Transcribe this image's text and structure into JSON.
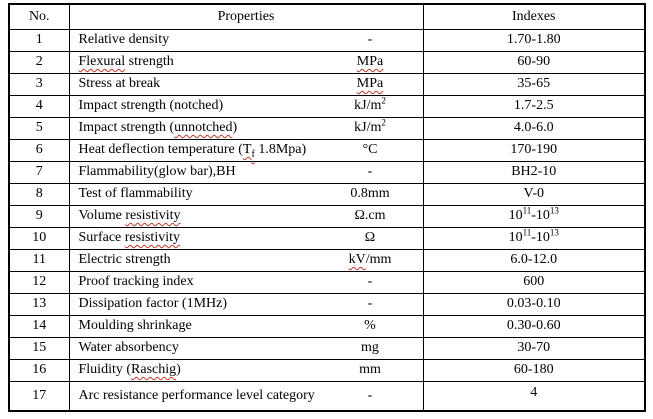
{
  "colors": {
    "background": "#ffffff",
    "text": "#000000",
    "border": "#000000",
    "squiggle": "#c0392b"
  },
  "table": {
    "headers": {
      "no": "No.",
      "properties": "Properties",
      "indexes": "Indexes"
    },
    "rows": [
      {
        "no": "1",
        "property": [
          {
            "text": "Relative density"
          }
        ],
        "unit": [
          {
            "text": "-"
          }
        ],
        "index": [
          {
            "text": "1.70-1.80"
          }
        ]
      },
      {
        "no": "2",
        "property": [
          {
            "text": "Flexural",
            "squiggle": true
          },
          {
            "text": " strength"
          }
        ],
        "unit": [
          {
            "text": "MPa",
            "squiggle": true
          }
        ],
        "index": [
          {
            "text": "60-90"
          }
        ]
      },
      {
        "no": "3",
        "property": [
          {
            "text": "Stress at break"
          }
        ],
        "unit": [
          {
            "text": "MPa",
            "squiggle": true
          }
        ],
        "index": [
          {
            "text": "35-65"
          }
        ]
      },
      {
        "no": "4",
        "property": [
          {
            "text": "Impact strength (notched)"
          }
        ],
        "unit": [
          {
            "text": "kJ/m"
          },
          {
            "text": "2",
            "sup": true
          }
        ],
        "index": [
          {
            "text": "1.7-2.5"
          }
        ]
      },
      {
        "no": "5",
        "property": [
          {
            "text": "Impact strength ("
          },
          {
            "text": "unnotched",
            "squiggle": true
          },
          {
            "text": ")"
          }
        ],
        "unit": [
          {
            "text": "kJ/m"
          },
          {
            "text": "2",
            "sup": true
          }
        ],
        "index": [
          {
            "text": "4.0-6.0"
          }
        ]
      },
      {
        "no": "6",
        "property": [
          {
            "text": "Heat deflection temperature ("
          },
          {
            "text": "T",
            "squiggle": true
          },
          {
            "text": "f",
            "sub": true,
            "squiggle": true
          },
          {
            "text": " 1.8Mpa)"
          }
        ],
        "unit": [
          {
            "text": "°C"
          }
        ],
        "index": [
          {
            "text": "170-190"
          }
        ]
      },
      {
        "no": "7",
        "property": [
          {
            "text": "Flammability(glow bar),BH"
          }
        ],
        "unit": [
          {
            "text": "-"
          }
        ],
        "index": [
          {
            "text": "BH2-10"
          }
        ]
      },
      {
        "no": "8",
        "property": [
          {
            "text": "Test of flammability"
          }
        ],
        "unit": [
          {
            "text": "0.8mm"
          }
        ],
        "index": [
          {
            "text": "V-0"
          }
        ]
      },
      {
        "no": "9",
        "property": [
          {
            "text": "Volume "
          },
          {
            "text": "resistivity",
            "squiggle": true
          }
        ],
        "unit": [
          {
            "text": "Ω.cm"
          }
        ],
        "index": [
          {
            "text": "10"
          },
          {
            "text": "11",
            "sup": true
          },
          {
            "text": "-10"
          },
          {
            "text": "13",
            "sup": true
          }
        ]
      },
      {
        "no": "10",
        "property": [
          {
            "text": "Surface "
          },
          {
            "text": "resistivity",
            "squiggle": true
          }
        ],
        "unit": [
          {
            "text": "Ω"
          }
        ],
        "index": [
          {
            "text": "10"
          },
          {
            "text": "11",
            "sup": true
          },
          {
            "text": "-10"
          },
          {
            "text": "13",
            "sup": true
          }
        ]
      },
      {
        "no": "11",
        "property": [
          {
            "text": "Electric strength"
          }
        ],
        "unit": [
          {
            "text": "kV",
            "squiggle": true
          },
          {
            "text": "/mm"
          }
        ],
        "index": [
          {
            "text": "6.0-12.0"
          }
        ]
      },
      {
        "no": "12",
        "property": [
          {
            "text": "Proof tracking index"
          }
        ],
        "unit": [
          {
            "text": "-"
          }
        ],
        "index": [
          {
            "text": "600"
          }
        ]
      },
      {
        "no": "13",
        "property": [
          {
            "text": "Dissipation factor (1MHz)"
          }
        ],
        "unit": [
          {
            "text": "-"
          }
        ],
        "index": [
          {
            "text": "0.03-0.10"
          }
        ]
      },
      {
        "no": "14",
        "property": [
          {
            "text": "Moulding shrinkage"
          }
        ],
        "unit": [
          {
            "text": "%"
          }
        ],
        "index": [
          {
            "text": "0.30-0.60"
          }
        ]
      },
      {
        "no": "15",
        "property": [
          {
            "text": "Water absorbency"
          }
        ],
        "unit": [
          {
            "text": "mg"
          }
        ],
        "index": [
          {
            "text": "30-70"
          }
        ]
      },
      {
        "no": "16",
        "property": [
          {
            "text": "Fluidity ("
          },
          {
            "text": "Raschig",
            "squiggle": true
          },
          {
            "text": ")"
          }
        ],
        "unit": [
          {
            "text": "mm"
          }
        ],
        "index": [
          {
            "text": "60-180"
          }
        ]
      },
      {
        "no": "17",
        "property": [
          {
            "text": "Arc resistance performance level category"
          }
        ],
        "unit": [
          {
            "text": "-"
          }
        ],
        "index": [
          {
            "text": "4"
          }
        ]
      }
    ]
  }
}
